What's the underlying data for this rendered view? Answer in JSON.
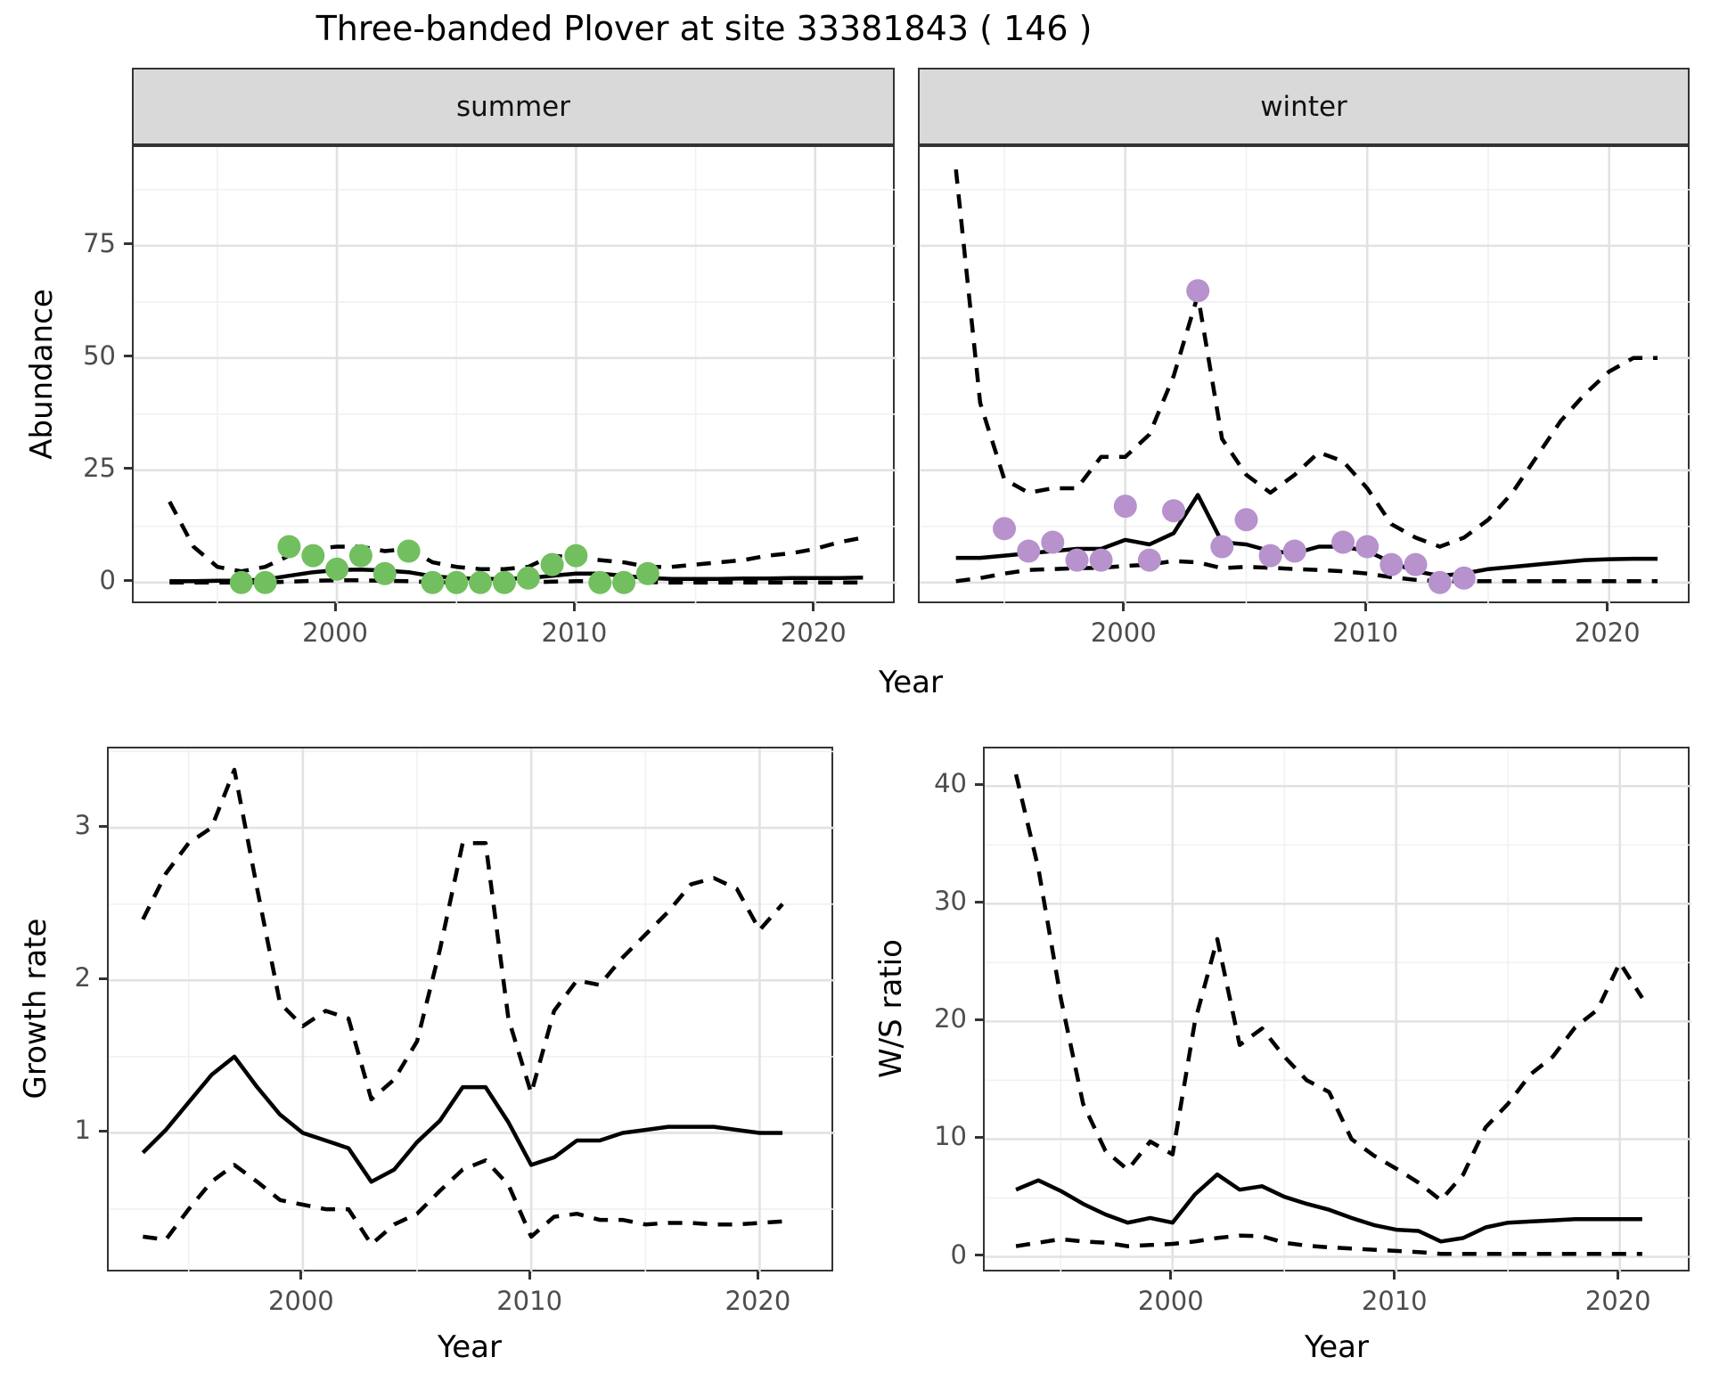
{
  "title": "Three-banded Plover at site 33381843 ( 146 )",
  "facet_labels": {
    "summer": "summer",
    "winter": "winter"
  },
  "axis_titles": {
    "x_top": "Year",
    "x_bottom_left": "Year",
    "x_bottom_right": "Year",
    "y_abundance": "Abundance",
    "y_growth": "Growth rate",
    "y_ws": "W/S ratio"
  },
  "colors": {
    "summer_points": "#72bf5f",
    "winter_points": "#b792cd",
    "line": "#000000",
    "strip_bg": "#d9d9d9",
    "panel_border": "#333333",
    "grid_major": "#e2e2e2",
    "grid_minor": "#f1f1f1",
    "tick_text": "#4d4d4d"
  },
  "chart_data": [
    {
      "type": "line",
      "panel": "summer",
      "facet": "summer",
      "xlabel": "Year",
      "ylabel": "Abundance",
      "xlim": [
        1991.5,
        2023.4
      ],
      "ylim": [
        -5,
        97
      ],
      "x_ticks": [
        2000,
        2010,
        2020
      ],
      "x_minor": [
        1995,
        2005,
        2015
      ],
      "y_ticks": [
        0,
        25,
        50,
        75
      ],
      "y_minor": [
        12.5,
        37.5,
        62.5,
        87.5
      ],
      "y_axis": true,
      "x": [
        1993,
        1994,
        1995,
        1996,
        1997,
        1998,
        1999,
        2000,
        2001,
        2002,
        2003,
        2004,
        2005,
        2006,
        2007,
        2008,
        2009,
        2010,
        2011,
        2012,
        2013,
        2014,
        2015,
        2016,
        2017,
        2018,
        2019,
        2020,
        2021,
        2022
      ],
      "series": [
        {
          "name": "fit",
          "style": "solid",
          "values": [
            0.3,
            0.3,
            0.4,
            0.4,
            0.7,
            1.5,
            2.3,
            2.8,
            2.9,
            2.7,
            2.3,
            1.4,
            1.0,
            0.8,
            0.8,
            1.0,
            1.5,
            2.0,
            2.0,
            1.5,
            1.0,
            0.8,
            0.8,
            0.8,
            0.9,
            0.9,
            1.0,
            1.0,
            1.0,
            1.1
          ]
        },
        {
          "name": "lower_ci",
          "style": "dashed",
          "values": [
            0,
            0,
            0,
            0,
            0,
            0.2,
            0.4,
            0.5,
            0.5,
            0.4,
            0.3,
            0.1,
            0,
            0,
            0,
            0,
            0.2,
            0.3,
            0.3,
            0.2,
            0.1,
            0,
            0,
            0,
            0,
            0,
            0,
            0,
            0,
            0
          ]
        },
        {
          "name": "upper_ci",
          "style": "dashed",
          "values": [
            18,
            8,
            3.5,
            2.5,
            3.5,
            6,
            7.5,
            8,
            8,
            7,
            7.5,
            4.5,
            3.5,
            3,
            3,
            3.5,
            6,
            5.5,
            5,
            4.5,
            3.5,
            3.5,
            4,
            4.5,
            5,
            6,
            6.5,
            7.5,
            9,
            10
          ]
        }
      ],
      "points": {
        "name": "observed-counts-summer",
        "x": [
          1996,
          1997,
          1998,
          1999,
          2000,
          2001,
          2002,
          2003,
          2004,
          2005,
          2006,
          2007,
          2008,
          2009,
          2010,
          2011,
          2012,
          2013
        ],
        "y": [
          0,
          0,
          8,
          6,
          3,
          6,
          2,
          7,
          0,
          0,
          0,
          0,
          1,
          4,
          6,
          0,
          0,
          2
        ]
      }
    },
    {
      "type": "line",
      "panel": "winter",
      "facet": "winter",
      "xlabel": "Year",
      "ylabel": "Abundance",
      "xlim": [
        1991.5,
        2023.4
      ],
      "ylim": [
        -5,
        97
      ],
      "x_ticks": [
        2000,
        2010,
        2020
      ],
      "x_minor": [
        1995,
        2005,
        2015
      ],
      "y_ticks": [
        0,
        25,
        50,
        75
      ],
      "y_minor": [
        12.5,
        37.5,
        62.5,
        87.5
      ],
      "y_axis": false,
      "x": [
        1993,
        1994,
        1995,
        1996,
        1997,
        1998,
        1999,
        2000,
        2001,
        2002,
        2003,
        2004,
        2005,
        2006,
        2007,
        2008,
        2009,
        2010,
        2011,
        2012,
        2013,
        2014,
        2015,
        2016,
        2017,
        2018,
        2019,
        2020,
        2021,
        2022
      ],
      "series": [
        {
          "name": "fit",
          "style": "solid",
          "values": [
            5.5,
            5.5,
            6,
            6.5,
            7,
            7.5,
            7.5,
            9.5,
            8.5,
            11,
            19.5,
            9,
            8.5,
            7,
            6.5,
            8,
            8,
            7,
            4.5,
            2.5,
            1.5,
            2,
            3,
            3.5,
            4,
            4.5,
            5,
            5.2,
            5.3,
            5.3
          ]
        },
        {
          "name": "lower_ci",
          "style": "dashed",
          "values": [
            0.3,
            1,
            2,
            2.8,
            3,
            3.2,
            3.3,
            3.7,
            4,
            4.8,
            4.5,
            3.2,
            3.5,
            3.3,
            3,
            2.8,
            2.5,
            2,
            1.2,
            0.6,
            0.3,
            0.3,
            0.3,
            0.3,
            0.3,
            0.3,
            0.3,
            0.3,
            0.3,
            0.3
          ]
        },
        {
          "name": "upper_ci",
          "style": "dashed",
          "values": [
            92,
            40,
            23,
            20,
            21,
            21,
            28,
            28,
            33,
            46,
            64,
            32,
            24,
            20,
            24,
            29,
            27,
            21,
            13,
            10,
            8,
            10,
            14,
            20,
            28,
            36,
            42,
            47,
            50,
            50
          ]
        }
      ],
      "points": {
        "name": "observed-counts-winter",
        "x": [
          1995,
          1996,
          1997,
          1998,
          1999,
          2000,
          2001,
          2002,
          2003,
          2004,
          2005,
          2006,
          2007,
          2009,
          2010,
          2011,
          2012,
          2013,
          2014
        ],
        "y": [
          12,
          7,
          9,
          5,
          5,
          17,
          5,
          16,
          65,
          8,
          14,
          6,
          7,
          9,
          8,
          4,
          4,
          0,
          1
        ]
      }
    },
    {
      "type": "line",
      "panel": "growth",
      "facet": null,
      "xlabel": "Year",
      "ylabel": "Growth rate",
      "xlim": [
        1991.5,
        2023.3
      ],
      "ylim": [
        0.08,
        3.52
      ],
      "x_ticks": [
        2000,
        2010,
        2020
      ],
      "x_minor": [
        1995,
        2005,
        2015
      ],
      "y_ticks": [
        1,
        2,
        3
      ],
      "y_minor": [
        0.5,
        1.5,
        2.5,
        3.5
      ],
      "y_axis": true,
      "x": [
        1993,
        1994,
        1995,
        1996,
        1997,
        1998,
        1999,
        2000,
        2001,
        2002,
        2003,
        2004,
        2005,
        2006,
        2007,
        2008,
        2009,
        2010,
        2011,
        2012,
        2013,
        2014,
        2015,
        2016,
        2017,
        2018,
        2019,
        2020,
        2021
      ],
      "series": [
        {
          "name": "fit",
          "style": "solid",
          "values": [
            0.87,
            1.02,
            1.2,
            1.38,
            1.5,
            1.3,
            1.12,
            1.0,
            0.95,
            0.9,
            0.68,
            0.76,
            0.94,
            1.08,
            1.3,
            1.3,
            1.07,
            0.79,
            0.84,
            0.95,
            0.95,
            1.0,
            1.02,
            1.04,
            1.04,
            1.04,
            1.02,
            1.0,
            1.0
          ]
        },
        {
          "name": "lower_ci",
          "style": "dashed",
          "values": [
            0.32,
            0.3,
            0.5,
            0.68,
            0.79,
            0.68,
            0.56,
            0.53,
            0.5,
            0.5,
            0.27,
            0.4,
            0.47,
            0.62,
            0.76,
            0.82,
            0.66,
            0.32,
            0.45,
            0.47,
            0.43,
            0.43,
            0.4,
            0.41,
            0.41,
            0.4,
            0.4,
            0.41,
            0.42
          ]
        },
        {
          "name": "upper_ci",
          "style": "dashed",
          "values": [
            2.4,
            2.7,
            2.9,
            3.0,
            3.38,
            2.6,
            1.85,
            1.7,
            1.8,
            1.75,
            1.22,
            1.35,
            1.6,
            2.2,
            2.9,
            2.9,
            1.75,
            1.26,
            1.8,
            2.0,
            1.97,
            2.15,
            2.3,
            2.45,
            2.63,
            2.67,
            2.6,
            2.33,
            2.5
          ]
        }
      ],
      "points": null
    },
    {
      "type": "line",
      "panel": "ws",
      "facet": null,
      "xlabel": "Year",
      "ylabel": "W/S ratio",
      "xlim": [
        1991.6,
        2023.2
      ],
      "ylim": [
        -1.4,
        43.2
      ],
      "x_ticks": [
        2000,
        2010,
        2020
      ],
      "x_minor": [
        1995,
        2005,
        2015
      ],
      "y_ticks": [
        0,
        10,
        20,
        30,
        40
      ],
      "y_minor": [
        5,
        15,
        25,
        35
      ],
      "y_axis": true,
      "x": [
        1993,
        1994,
        1995,
        1996,
        1997,
        1998,
        1999,
        2000,
        2001,
        2002,
        2003,
        2004,
        2005,
        2006,
        2007,
        2008,
        2009,
        2010,
        2011,
        2012,
        2013,
        2014,
        2015,
        2016,
        2017,
        2018,
        2019,
        2020,
        2021
      ],
      "series": [
        {
          "name": "fit",
          "style": "solid",
          "values": [
            5.7,
            6.5,
            5.6,
            4.5,
            3.6,
            2.9,
            3.3,
            2.9,
            5.3,
            7.0,
            5.7,
            6.0,
            5.1,
            4.5,
            4.0,
            3.3,
            2.7,
            2.3,
            2.2,
            1.3,
            1.6,
            2.5,
            2.9,
            3.0,
            3.1,
            3.2,
            3.2,
            3.2,
            3.2
          ]
        },
        {
          "name": "lower_ci",
          "style": "dashed",
          "values": [
            0.9,
            1.2,
            1.5,
            1.3,
            1.2,
            0.9,
            1.0,
            1.1,
            1.3,
            1.6,
            1.8,
            1.75,
            1.2,
            0.95,
            0.8,
            0.7,
            0.6,
            0.5,
            0.4,
            0.25,
            0.25,
            0.25,
            0.25,
            0.25,
            0.25,
            0.25,
            0.25,
            0.25,
            0.25
          ]
        },
        {
          "name": "upper_ci",
          "style": "dashed",
          "values": [
            41,
            33,
            22,
            13,
            9,
            7.4,
            9.8,
            8.7,
            20,
            27,
            18,
            19.4,
            17,
            15,
            14,
            10,
            8.6,
            7.5,
            6.3,
            4.8,
            7,
            11,
            13,
            15.5,
            17,
            19.5,
            21,
            25,
            22
          ]
        }
      ],
      "points": null
    }
  ]
}
